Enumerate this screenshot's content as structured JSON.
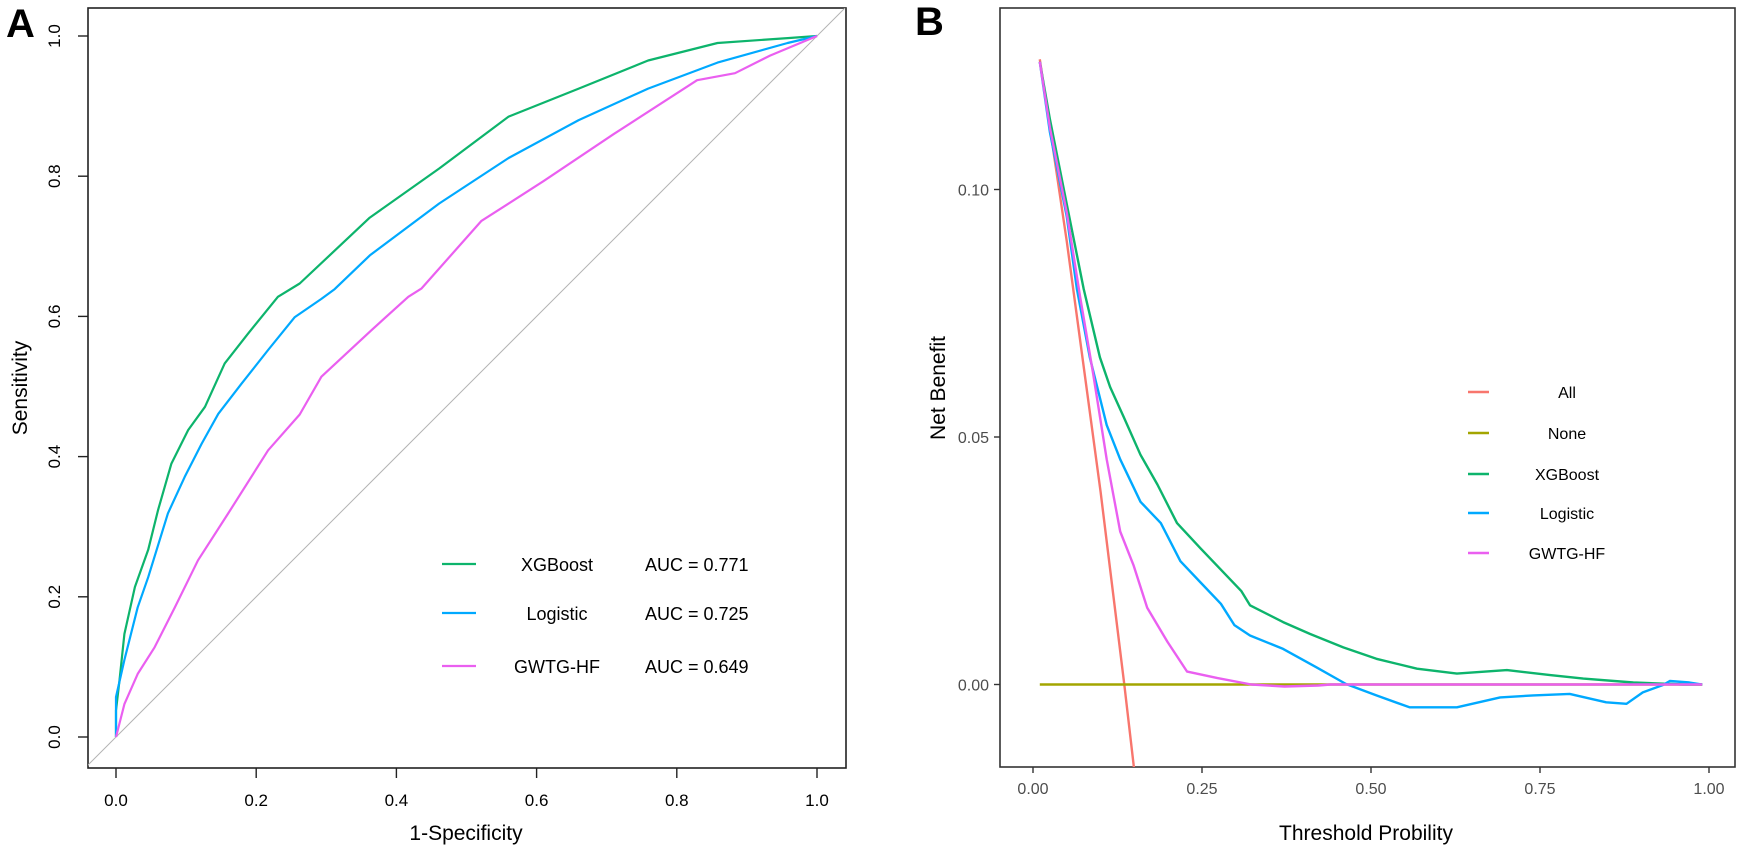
{
  "chart_data": [
    {
      "panel": "A",
      "type": "line",
      "xlabel": "1-Specificity",
      "ylabel": "Sensitivity",
      "xlim": [
        0,
        1
      ],
      "ylim": [
        0,
        1
      ],
      "xticks": [
        "0.0",
        "0.2",
        "0.4",
        "0.6",
        "0.8",
        "1.0"
      ],
      "yticks": [
        "0.0",
        "0.2",
        "0.4",
        "0.6",
        "0.8",
        "1.0"
      ],
      "grid": false,
      "legend_position": "bottom-right",
      "reference_line": {
        "x": [
          0,
          1
        ],
        "y": [
          0,
          1
        ],
        "color": "#b3b3b3"
      },
      "series": [
        {
          "name": "XGBoost",
          "auc_label": "AUC = 0.771",
          "color": "#0db46c",
          "x": [
            0,
            0,
            0.005,
            0.012,
            0.027,
            0.046,
            0.06,
            0.079,
            0.103,
            0.127,
            0.155,
            0.188,
            0.231,
            0.262,
            0.362,
            0.461,
            0.56,
            0.66,
            0.759,
            0.858,
            0.958,
            1.0
          ],
          "y": [
            0,
            0.038,
            0.081,
            0.147,
            0.214,
            0.267,
            0.324,
            0.39,
            0.438,
            0.471,
            0.533,
            0.575,
            0.628,
            0.647,
            0.741,
            0.811,
            0.885,
            0.925,
            0.965,
            0.99,
            0.997,
            1.0
          ]
        },
        {
          "name": "Logistic",
          "auc_label": "AUC = 0.725",
          "color": "#00a9ff",
          "x": [
            0,
            0,
            0.012,
            0.031,
            0.046,
            0.074,
            0.098,
            0.122,
            0.146,
            0.179,
            0.217,
            0.255,
            0.293,
            0.312,
            0.362,
            0.461,
            0.56,
            0.66,
            0.759,
            0.858,
            0.958,
            1.0
          ],
          "y": [
            0,
            0.057,
            0.11,
            0.185,
            0.228,
            0.319,
            0.371,
            0.418,
            0.461,
            0.504,
            0.552,
            0.599,
            0.625,
            0.639,
            0.687,
            0.761,
            0.826,
            0.88,
            0.925,
            0.962,
            0.99,
            1.0
          ]
        },
        {
          "name": "GWTG-HF",
          "auc_label": "AUC = 0.649",
          "color": "#ea5ff0",
          "x": [
            0,
            0.012,
            0.031,
            0.055,
            0.084,
            0.117,
            0.16,
            0.217,
            0.262,
            0.293,
            0.364,
            0.417,
            0.436,
            0.521,
            0.61,
            0.71,
            0.829,
            0.883,
            0.933,
            1.0
          ],
          "y": [
            0,
            0.047,
            0.09,
            0.128,
            0.185,
            0.252,
            0.319,
            0.409,
            0.46,
            0.514,
            0.58,
            0.628,
            0.64,
            0.736,
            0.793,
            0.86,
            0.937,
            0.947,
            0.972,
            1.0
          ]
        }
      ]
    },
    {
      "panel": "B",
      "type": "line",
      "xlabel": "Threshold Probility",
      "ylabel": "Net Benefit",
      "xlim": [
        -0.05,
        1.04
      ],
      "ylim": [
        -0.0166,
        0.1368
      ],
      "xticks": [
        "0.00",
        "0.25",
        "0.50",
        "0.75",
        "1.00"
      ],
      "yticks": [
        "0.00",
        "0.05",
        "0.10"
      ],
      "grid": false,
      "legend_position": "right",
      "series": [
        {
          "name": "All",
          "color": "#f8766d",
          "x": [
            0.01,
            0.05,
            0.1,
            0.135,
            0.15,
            0.16
          ],
          "y": [
            0.1263,
            0.0895,
            0.0389,
            0.0,
            -0.0176,
            -0.0298
          ]
        },
        {
          "name": "None",
          "color": "#a3a500",
          "x": [
            0.01,
            0.99
          ],
          "y": [
            0,
            0
          ]
        },
        {
          "name": "XGBoost",
          "color": "#0db46c",
          "x": [
            0.01,
            0.025,
            0.05,
            0.075,
            0.099,
            0.114,
            0.134,
            0.159,
            0.184,
            0.213,
            0.248,
            0.278,
            0.308,
            0.321,
            0.37,
            0.41,
            0.459,
            0.508,
            0.568,
            0.627,
            0.701,
            0.765,
            0.814,
            0.888,
            0.962,
            0.99
          ],
          "y": [
            0.1258,
            0.1142,
            0.097,
            0.0799,
            0.0661,
            0.0601,
            0.0541,
            0.0464,
            0.0404,
            0.0326,
            0.0275,
            0.0232,
            0.0189,
            0.016,
            0.0126,
            0.0102,
            0.0075,
            0.0052,
            0.0032,
            0.0022,
            0.0029,
            0.0019,
            0.0012,
            0.0004,
            0.0,
            0.0
          ]
        },
        {
          "name": "Logistic",
          "color": "#00a9ff",
          "x": [
            0.01,
            0.025,
            0.05,
            0.065,
            0.084,
            0.109,
            0.129,
            0.159,
            0.189,
            0.218,
            0.248,
            0.278,
            0.298,
            0.321,
            0.37,
            0.419,
            0.463,
            0.508,
            0.557,
            0.627,
            0.691,
            0.74,
            0.794,
            0.848,
            0.878,
            0.902,
            0.932,
            0.942,
            0.971,
            0.99
          ],
          "y": [
            0.1258,
            0.1116,
            0.0945,
            0.0799,
            0.0661,
            0.0524,
            0.0455,
            0.0369,
            0.0326,
            0.0249,
            0.0206,
            0.0163,
            0.012,
            0.0099,
            0.0072,
            0.0035,
            0.0001,
            -0.0022,
            -0.0046,
            -0.0046,
            -0.0026,
            -0.0022,
            -0.0019,
            -0.0036,
            -0.0039,
            -0.0016,
            -0.0001,
            0.0007,
            0.0004,
            0.0
          ]
        },
        {
          "name": "GWTG-HF",
          "color": "#ea5ff0",
          "x": [
            0.01,
            0.025,
            0.05,
            0.07,
            0.089,
            0.109,
            0.129,
            0.149,
            0.169,
            0.199,
            0.228,
            0.273,
            0.323,
            0.372,
            0.422,
            0.44,
            0.99
          ],
          "y": [
            0.1258,
            0.1125,
            0.0953,
            0.0781,
            0.0627,
            0.0455,
            0.0309,
            0.024,
            0.0155,
            0.0086,
            0.0026,
            0.0013,
            0.0,
            -0.0004,
            -0.0002,
            0.0,
            0.0
          ]
        }
      ]
    }
  ]
}
